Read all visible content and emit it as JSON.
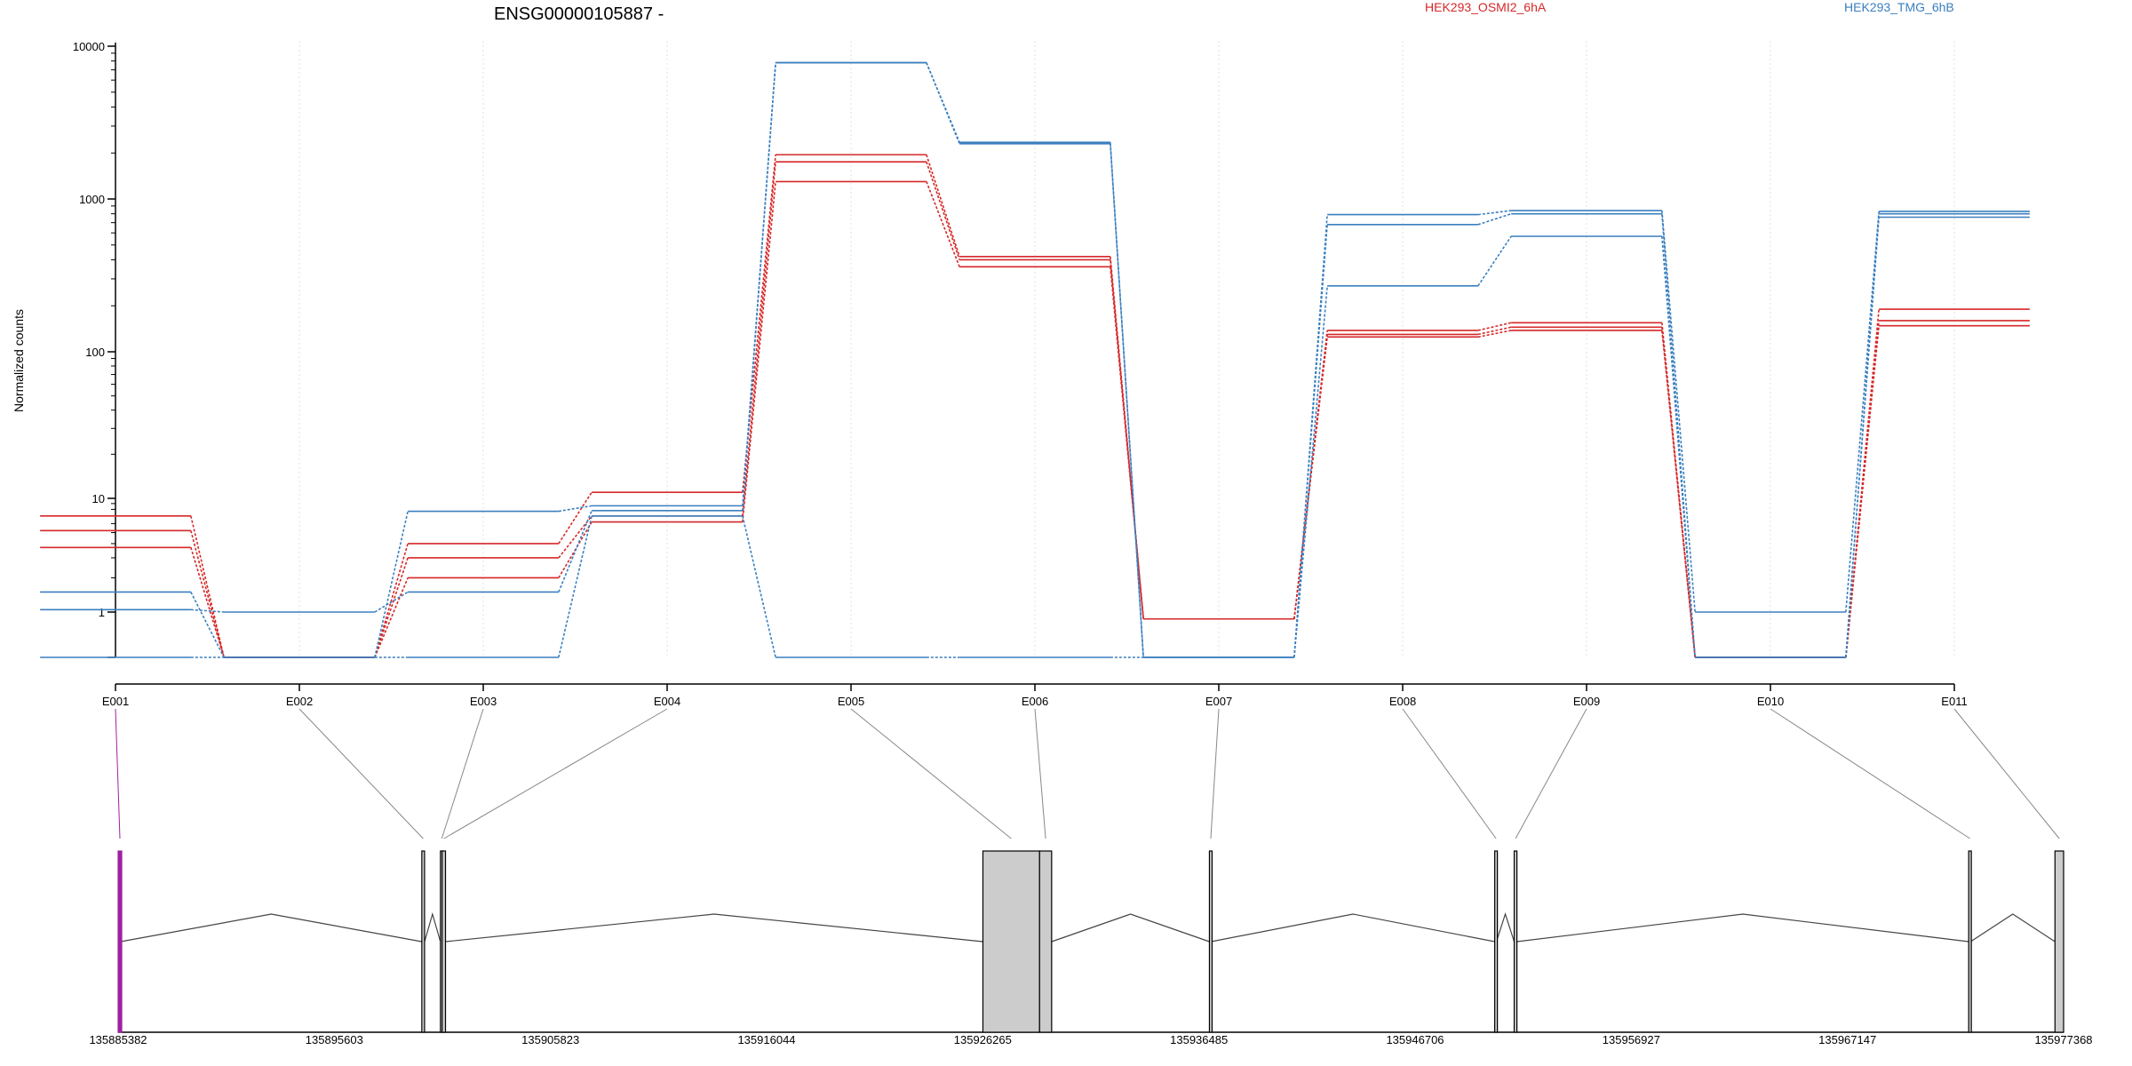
{
  "chart_data": {
    "type": "line",
    "title": "ENSG00000105887 -",
    "ylabel": "Normalized counts",
    "xlabel": "",
    "y_scale": "log",
    "y_ticks": [
      "1",
      "10",
      "100",
      "1000",
      "10000"
    ],
    "y_tick_values": [
      1,
      10,
      100,
      1000,
      10000
    ],
    "grid": "vertical dotted",
    "legend": [
      {
        "name": "HEK293_OSMI2_6hA",
        "color": "#d62728"
      },
      {
        "name": "HEK293_TMG_6hB",
        "color": "#3a7fbf"
      }
    ],
    "legend_position": "top-right",
    "categories": [
      "E001",
      "E002",
      "E003",
      "E004",
      "E005",
      "E006",
      "E007",
      "E008",
      "E009",
      "E010",
      "E011"
    ],
    "series": [
      {
        "group": "HEK293_OSMI2_6hA",
        "color": "#d62728",
        "values": [
          7,
          0.5,
          4,
          11,
          1950,
          420,
          0.9,
          138,
          155,
          0.5,
          190
        ]
      },
      {
        "group": "HEK293_OSMI2_6hA",
        "color": "#d62728",
        "values": [
          5.2,
          0.5,
          3,
          7,
          1750,
          400,
          0.9,
          130,
          145,
          0.5,
          160
        ]
      },
      {
        "group": "HEK293_OSMI2_6hA",
        "color": "#d62728",
        "values": [
          3.7,
          0.5,
          2,
          6.2,
          1300,
          360,
          0.9,
          125,
          138,
          0.5,
          148
        ]
      },
      {
        "group": "HEK293_TMG_6hB",
        "color": "#3a7fbf",
        "values": [
          1.5,
          0.5,
          7.7,
          8.6,
          7800,
          2350,
          0.5,
          790,
          840,
          1,
          830
        ]
      },
      {
        "group": "HEK293_TMG_6hB",
        "color": "#3a7fbf",
        "values": [
          1.05,
          1,
          1.5,
          7.8,
          7800,
          2300,
          0.5,
          680,
          800,
          0.5,
          800
        ]
      },
      {
        "group": "HEK293_TMG_6hB",
        "color": "#3a7fbf",
        "values": [
          0.5,
          0.5,
          0.5,
          7,
          0.5,
          0.5,
          0.5,
          270,
          570,
          0.5,
          760
        ]
      }
    ],
    "gene_model": {
      "coordinate_ticks": [
        "135885382",
        "135895603",
        "135905823",
        "135916044",
        "135926265",
        "135936485",
        "135946706",
        "135956927",
        "135967147",
        "135977368"
      ],
      "coord_min": 135885382,
      "coord_max": 135977368,
      "exons": [
        {
          "id": "E001",
          "start": 135885382,
          "end": 135885500,
          "fill": "#a020a0",
          "highlight": true
        },
        {
          "id": "E002",
          "start": 135899740,
          "end": 135899870,
          "fill": "#cccccc",
          "highlight": false
        },
        {
          "id": "E003",
          "start": 135900620,
          "end": 135900700,
          "fill": "#cccccc",
          "highlight": false
        },
        {
          "id": "E004",
          "start": 135900700,
          "end": 135900860,
          "fill": "#cccccc",
          "highlight": false
        },
        {
          "id": "E005",
          "start": 135926270,
          "end": 135928950,
          "fill": "#cccccc",
          "highlight": false
        },
        {
          "id": "E006",
          "start": 135928950,
          "end": 135929520,
          "fill": "#cccccc",
          "highlight": false
        },
        {
          "id": "E007",
          "start": 135936980,
          "end": 135937060,
          "fill": "#cccccc",
          "highlight": false
        },
        {
          "id": "E008",
          "start": 135950470,
          "end": 135950550,
          "fill": "#cccccc",
          "highlight": false
        },
        {
          "id": "E009",
          "start": 135951390,
          "end": 135951520,
          "fill": "#cccccc",
          "highlight": false
        },
        {
          "id": "E010",
          "start": 135972880,
          "end": 135972970,
          "fill": "#cccccc",
          "highlight": false
        },
        {
          "id": "E011",
          "start": 135976960,
          "end": 135977368,
          "fill": "#cccccc",
          "highlight": false
        }
      ]
    }
  }
}
